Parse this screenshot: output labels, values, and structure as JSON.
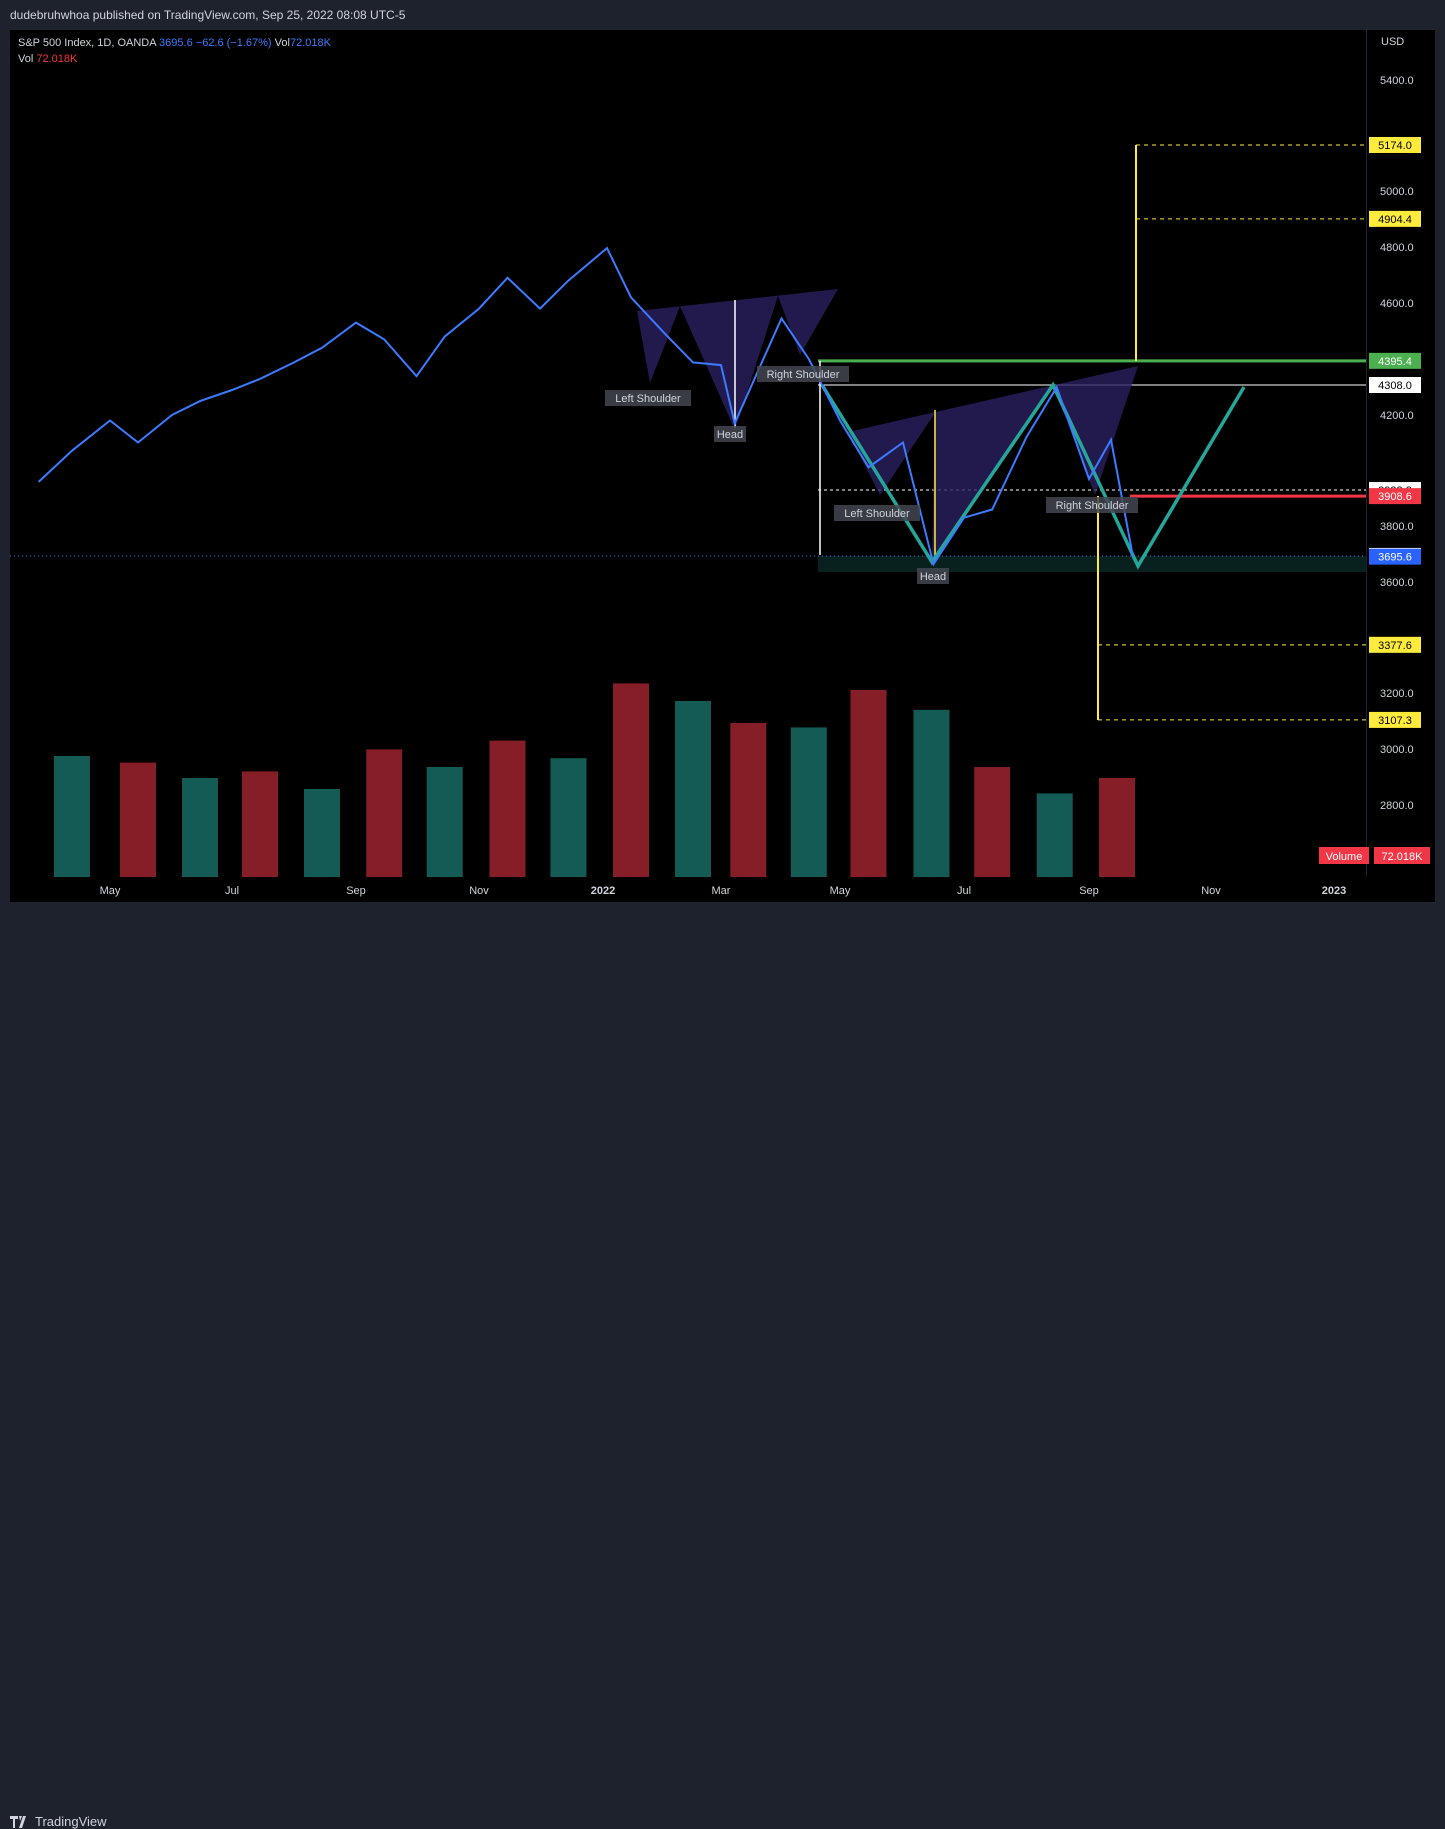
{
  "header": {
    "published": "dudebruhwhoa published on TradingView.com, Sep 25, 2022 08:08 UTC-5"
  },
  "legend": {
    "symbol": "S&P 500 Index, 1D, OANDA",
    "price": "3695.6",
    "change": "−62.6 (−1.67%)",
    "vol_label": "Vol",
    "vol_value": "72.018K",
    "vol_row_label": "Vol",
    "vol_row_value": "72.018K"
  },
  "footer": {
    "brand": "TradingView"
  },
  "colors": {
    "price_line": "#3c7bff",
    "pattern_teal": "#26a69a",
    "target_yellow": "#ffeb3b",
    "neckline_green": "#4caf50",
    "stop_red": "#f23645",
    "pattern_fill": "#2a2060"
  },
  "chart_data": {
    "type": "line",
    "title": "S&P 500 Index, 1D, OANDA",
    "currency": "USD",
    "ylim": [
      2450,
      5700
    ],
    "x_ticks": [
      "May",
      "Jul",
      "Sep",
      "Nov",
      "2022",
      "Mar",
      "May",
      "Jul",
      "Sep",
      "Nov",
      "2023"
    ],
    "y_ticks": [
      "5400.0",
      "5000.0",
      "4800.0",
      "4600.0",
      "4200.0",
      "3800.0",
      "3600.0",
      "3200.0",
      "3000.0",
      "2800.0"
    ],
    "series": [
      {
        "name": "S&P 500 Index",
        "x": [
          "2021-04-01",
          "2021-04-15",
          "2021-05-01",
          "2021-05-15",
          "2021-06-01",
          "2021-06-15",
          "2021-07-01",
          "2021-07-15",
          "2021-08-01",
          "2021-08-15",
          "2021-09-01",
          "2021-09-15",
          "2021-10-01",
          "2021-10-15",
          "2021-11-01",
          "2021-11-15",
          "2021-12-01",
          "2021-12-15",
          "2022-01-03",
          "2022-01-15",
          "2022-02-01",
          "2022-02-15",
          "2022-03-01",
          "2022-03-08",
          "2022-03-15",
          "2022-04-01",
          "2022-04-15",
          "2022-05-01",
          "2022-05-15",
          "2022-06-01",
          "2022-06-16",
          "2022-07-01",
          "2022-07-15",
          "2022-08-01",
          "2022-08-16",
          "2022-09-01",
          "2022-09-12",
          "2022-09-23"
        ],
        "values": [
          3960,
          4070,
          4180,
          4100,
          4200,
          4250,
          4290,
          4330,
          4390,
          4440,
          4530,
          4470,
          4340,
          4480,
          4580,
          4690,
          4580,
          4680,
          4796,
          4620,
          4490,
          4390,
          4380,
          4170,
          4280,
          4545,
          4400,
          4180,
          4010,
          4100,
          3667,
          3830,
          3860,
          4120,
          4300,
          3970,
          4110,
          3695
        ]
      },
      {
        "name": "Volume",
        "x": [
          "2021-04",
          "2021-05",
          "2021-06",
          "2021-07",
          "2021-08",
          "2021-09",
          "2021-10",
          "2021-11",
          "2021-12",
          "2022-01",
          "2022-02",
          "2022-03",
          "2022-04",
          "2022-05",
          "2022-06",
          "2022-07",
          "2022-08",
          "2022-09"
        ],
        "values": [
          55,
          52,
          45,
          48,
          40,
          58,
          50,
          62,
          54,
          88,
          80,
          70,
          68,
          85,
          76,
          50,
          38,
          45
        ]
      }
    ],
    "levels": [
      "5174.0",
      "4904.4",
      "4395.4",
      "4308.0",
      "3932.8",
      "3908.6",
      "3698.3",
      "3695.6",
      "3377.6",
      "3107.3"
    ],
    "annotations": [
      "Left Shoulder",
      "Head",
      "Right Shoulder",
      "Left Shoulder",
      "Head",
      "Right Shoulder"
    ],
    "volume_label": "Volume",
    "volume_value": "72.018K"
  }
}
